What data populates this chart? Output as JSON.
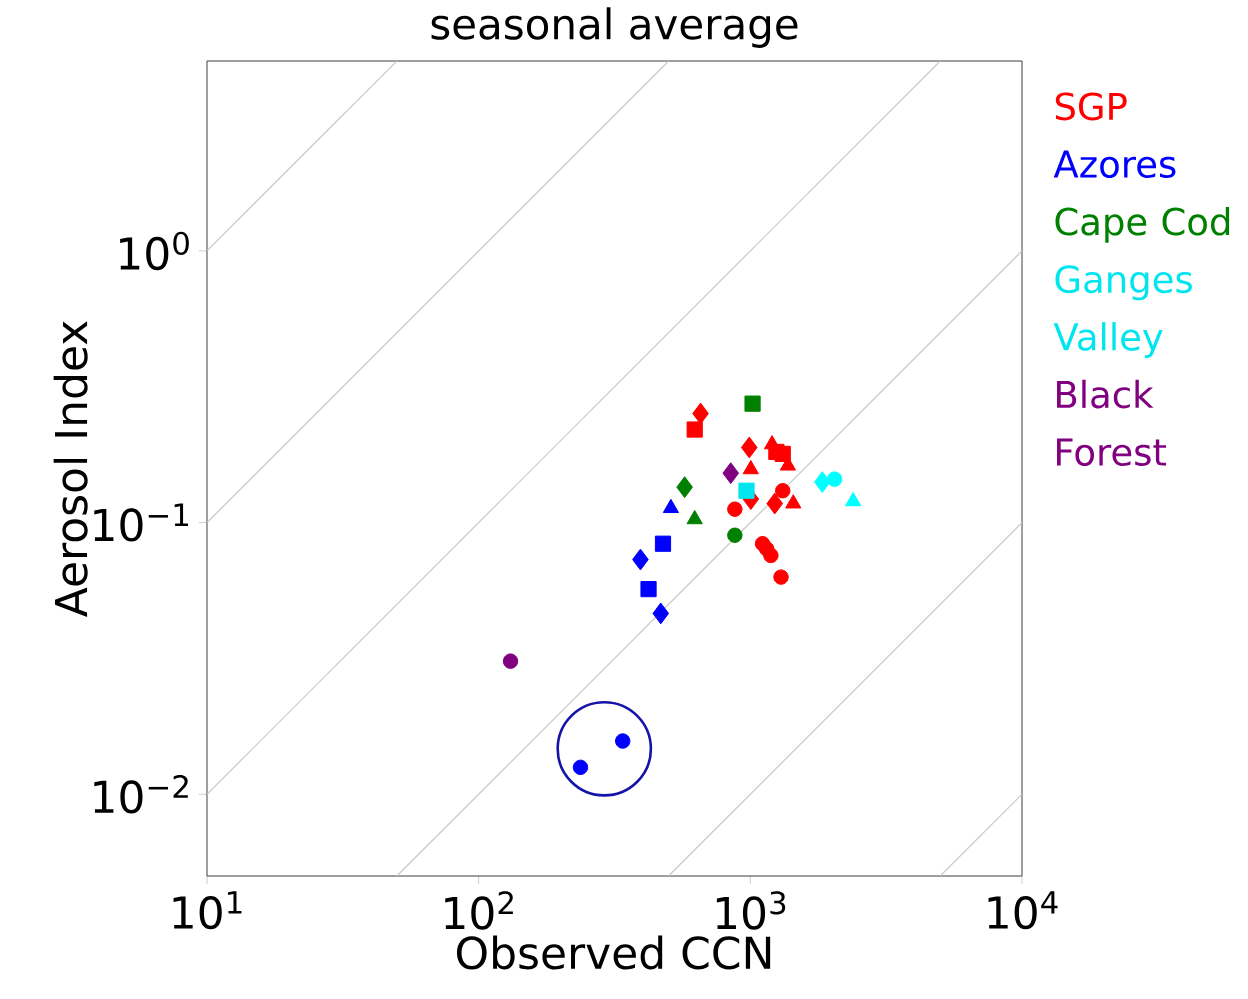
{
  "chart_data": {
    "type": "scatter",
    "title": "seasonal average",
    "xlabel": "Observed CCN",
    "ylabel": "Aerosol Index",
    "log": "xy",
    "grid": false,
    "legend": "right",
    "xlim": [
      10,
      10000
    ],
    "ylim": [
      0.005,
      5
    ],
    "xticks": [
      {
        "value": 10,
        "label": "10$^{1}$"
      },
      {
        "value": 100,
        "label": "10$^{2}$"
      },
      {
        "value": 1000,
        "label": "10$^{3}$"
      },
      {
        "value": 10000,
        "label": "10$^{4}$"
      }
    ],
    "yticks": [
      {
        "value": 0.01,
        "label": "10$^{−2}$"
      },
      {
        "value": 0.1,
        "label": "10$^{−1}$"
      },
      {
        "value": 1,
        "label": "10$^{0}$"
      }
    ],
    "series": [
      {
        "type": "line",
        "color": "#c8c8c8",
        "x": [
          10,
          50
        ],
        "values": [
          1,
          5
        ]
      },
      {
        "type": "line",
        "color": "#c8c8c8",
        "x": [
          10,
          500
        ],
        "values": [
          0.1,
          5
        ]
      },
      {
        "type": "line",
        "color": "#c8c8c8",
        "x": [
          10,
          5000
        ],
        "values": [
          0.01,
          5
        ]
      },
      {
        "type": "line",
        "color": "#c8c8c8",
        "x": [
          50,
          10000
        ],
        "values": [
          0.005,
          1
        ]
      },
      {
        "type": "line",
        "color": "#c8c8c8",
        "x": [
          500,
          10000
        ],
        "values": [
          0.005,
          0.1
        ]
      },
      {
        "type": "line",
        "color": "#c8c8c8",
        "x": [
          5000,
          10000
        ],
        "values": [
          0.005,
          0.01
        ]
      },
      {
        "name": "SGP",
        "color": "#ff0000",
        "marker": "diamond",
        "x": [
          656,
          991,
          1004,
          1230
        ],
        "values": [
          0.252,
          0.189,
          0.122,
          0.1175
        ]
      },
      {
        "color": "#ff0000",
        "marker": "triangle",
        "x": [
          1202,
          1375,
          1004,
          1439
        ],
        "values": [
          0.194,
          0.162,
          0.157,
          0.1175
        ]
      },
      {
        "color": "#ff0000",
        "marker": "square",
        "x": [
          624,
          1247,
          1316
        ],
        "values": [
          0.22,
          0.182,
          0.179
        ]
      },
      {
        "color": "#ff0000",
        "marker": "circle",
        "x": [
          1316,
          877,
          1109,
          1149,
          1190,
          1297
        ],
        "values": [
          0.131,
          0.112,
          0.0836,
          0.08,
          0.0757,
          0.063
        ]
      },
      {
        "name": "Azores",
        "color": "#0000ff",
        "marker": "triangle",
        "x": [
          510
        ],
        "values": [
          0.113
        ]
      },
      {
        "color": "#0000ff",
        "marker": "square",
        "x": [
          477,
          422
        ],
        "values": [
          0.0836,
          0.0569
        ]
      },
      {
        "color": "#0000ff",
        "marker": "diamond",
        "x": [
          394,
          468
        ],
        "values": [
          0.0731,
          0.0463
        ]
      },
      {
        "color": "#0000ff",
        "marker": "circle",
        "x": [
          339,
          237
        ],
        "values": [
          0.0157,
          0.01256
        ]
      },
      {
        "name": "Cape Cod",
        "color": "#008000",
        "marker": "square",
        "x": [
          1019
        ],
        "values": [
          0.274
        ]
      },
      {
        "color": "#008000",
        "marker": "diamond",
        "x": [
          573
        ],
        "values": [
          0.135
        ]
      },
      {
        "color": "#008000",
        "marker": "triangle",
        "x": [
          624
        ],
        "values": [
          0.1028
        ]
      },
      {
        "color": "#008000",
        "marker": "circle",
        "x": [
          877
        ],
        "values": [
          0.0898
        ]
      },
      {
        "name": "Ganges Valley",
        "color": "#00e5ee",
        "marker": "square",
        "x": [
          968
        ],
        "values": [
          0.131
        ]
      },
      {
        "color": "#00ffff",
        "marker": "diamond",
        "x": [
          1841
        ],
        "values": [
          0.141
        ]
      },
      {
        "color": "#00ffff",
        "marker": "circle",
        "x": [
          2042
        ],
        "values": [
          0.1445
        ]
      },
      {
        "color": "#00ffff",
        "marker": "triangle",
        "x": [
          2390
        ],
        "values": [
          0.1197
        ]
      },
      {
        "name": "Black Forest",
        "color": "#800080",
        "marker": "diamond",
        "x": [
          847
        ],
        "values": [
          0.152
        ]
      },
      {
        "color": "#800080",
        "marker": "circle",
        "x": [
          131
        ],
        "values": [
          0.0309
        ]
      }
    ]
  }
}
